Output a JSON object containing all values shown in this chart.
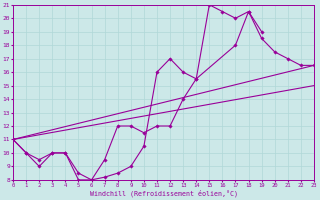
{
  "xlabel": "Windchill (Refroidissement éolien,°C)",
  "xlim": [
    0,
    23
  ],
  "ylim": [
    8,
    21
  ],
  "xticks": [
    0,
    1,
    2,
    3,
    4,
    5,
    6,
    7,
    8,
    9,
    10,
    11,
    12,
    13,
    14,
    15,
    16,
    17,
    18,
    19,
    20,
    21,
    22,
    23
  ],
  "yticks": [
    8,
    9,
    10,
    11,
    12,
    13,
    14,
    15,
    16,
    17,
    18,
    19,
    20,
    21
  ],
  "bg_color": "#cce8e8",
  "grid_color": "#b0d8d8",
  "line_color": "#990099",
  "line1_x": [
    0,
    1,
    2,
    3,
    4,
    5,
    6,
    7,
    8,
    9,
    10,
    11,
    12,
    13,
    14,
    15,
    16,
    17,
    18,
    19
  ],
  "line1_y": [
    11,
    10,
    9,
    10,
    10,
    8,
    8,
    9.5,
    12,
    12,
    11.5,
    12,
    12,
    14,
    15.5,
    21,
    20.5,
    20,
    20.5,
    19
  ],
  "line2_x": [
    0,
    1,
    2,
    3,
    4,
    5,
    6,
    7,
    8,
    9,
    10,
    11,
    12,
    13,
    14,
    17,
    18,
    19,
    20,
    21,
    22,
    23
  ],
  "line2_y": [
    11,
    10,
    9.5,
    10,
    10,
    8.5,
    8,
    8.2,
    8.5,
    9,
    10.5,
    16,
    17,
    16,
    15.5,
    18,
    20.5,
    18.5,
    17.5,
    17,
    16.5,
    16.5
  ],
  "line3_x": [
    0,
    23
  ],
  "line3_y": [
    11.0,
    15.0
  ],
  "line4_x": [
    0,
    23
  ],
  "line4_y": [
    11.0,
    16.5
  ]
}
